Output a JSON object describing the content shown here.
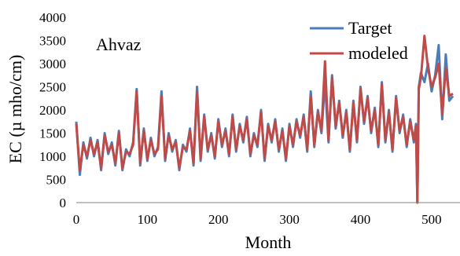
{
  "chart_data": {
    "type": "line",
    "annotation": "Ahvaz",
    "xlabel": "Month",
    "ylabel": "EC (µ mho/cm)",
    "xlim": [
      0,
      540
    ],
    "ylim": [
      0,
      4000
    ],
    "xticks": [
      0,
      100,
      200,
      300,
      400,
      500
    ],
    "yticks": [
      0,
      500,
      1000,
      1500,
      2000,
      2500,
      3000,
      3500,
      4000
    ],
    "grid": false,
    "legend_position": "top-right",
    "series": [
      {
        "name": "Target",
        "color": "#4A7EBB",
        "x": [
          0,
          5,
          10,
          15,
          20,
          25,
          30,
          35,
          40,
          45,
          50,
          55,
          60,
          65,
          70,
          75,
          80,
          85,
          90,
          95,
          100,
          105,
          110,
          115,
          120,
          125,
          130,
          135,
          140,
          145,
          150,
          155,
          160,
          165,
          170,
          175,
          180,
          185,
          190,
          195,
          200,
          205,
          210,
          215,
          220,
          225,
          230,
          235,
          240,
          245,
          250,
          255,
          260,
          265,
          270,
          275,
          280,
          285,
          290,
          295,
          300,
          305,
          310,
          315,
          320,
          325,
          330,
          335,
          340,
          345,
          350,
          355,
          360,
          365,
          370,
          375,
          380,
          385,
          390,
          395,
          400,
          405,
          410,
          415,
          420,
          425,
          430,
          435,
          440,
          445,
          450,
          455,
          460,
          465,
          470,
          475,
          478,
          480,
          482,
          485,
          490,
          495,
          500,
          505,
          510,
          515,
          520,
          525,
          530
        ],
        "y": [
          1750,
          600,
          1300,
          950,
          1400,
          1000,
          1350,
          700,
          1500,
          1050,
          1300,
          800,
          1550,
          700,
          1150,
          1000,
          1300,
          2450,
          800,
          1600,
          900,
          1400,
          1000,
          1200,
          2400,
          900,
          1500,
          1100,
          1350,
          700,
          1250,
          1100,
          1600,
          800,
          2500,
          900,
          1900,
          1100,
          1500,
          950,
          1800,
          1200,
          1600,
          1000,
          1900,
          1100,
          1700,
          1300,
          1850,
          1000,
          1500,
          1200,
          2000,
          900,
          1700,
          1300,
          1800,
          1100,
          1600,
          900,
          1700,
          1200,
          1800,
          1400,
          1900,
          1100,
          2400,
          1200,
          2000,
          1500,
          2600,
          1300,
          2750,
          1600,
          2200,
          1400,
          2000,
          1100,
          2200,
          1300,
          2500,
          1700,
          2300,
          1500,
          2050,
          1200,
          2600,
          1300,
          2000,
          1100,
          2300,
          1500,
          1900,
          1200,
          1800,
          1300,
          1700,
          0,
          2500,
          2800,
          2600,
          3000,
          2400,
          2750,
          3400,
          1800,
          3200,
          2200,
          2300
        ]
      },
      {
        "name": "modeled",
        "color": "#BE4B48",
        "x": [
          0,
          5,
          10,
          15,
          20,
          25,
          30,
          35,
          40,
          45,
          50,
          55,
          60,
          65,
          70,
          75,
          80,
          85,
          90,
          95,
          100,
          105,
          110,
          115,
          120,
          125,
          130,
          135,
          140,
          145,
          150,
          155,
          160,
          165,
          170,
          175,
          180,
          185,
          190,
          195,
          200,
          205,
          210,
          215,
          220,
          225,
          230,
          235,
          240,
          245,
          250,
          255,
          260,
          265,
          270,
          275,
          280,
          285,
          290,
          295,
          300,
          305,
          310,
          315,
          320,
          325,
          330,
          335,
          340,
          345,
          350,
          355,
          360,
          365,
          370,
          375,
          380,
          385,
          390,
          395,
          400,
          405,
          410,
          415,
          420,
          425,
          430,
          435,
          440,
          445,
          450,
          455,
          460,
          465,
          470,
          475,
          478,
          480,
          482,
          485,
          490,
          495,
          500,
          505,
          510,
          515,
          520,
          525,
          530
        ],
        "y": [
          1700,
          700,
          1250,
          1000,
          1350,
          1050,
          1300,
          750,
          1450,
          1100,
          1250,
          850,
          1500,
          750,
          1100,
          1050,
          1250,
          2400,
          850,
          1550,
          950,
          1350,
          1050,
          1150,
          2300,
          950,
          1450,
          1150,
          1300,
          750,
          1200,
          1150,
          1550,
          850,
          2400,
          950,
          1850,
          1150,
          1450,
          1000,
          1750,
          1250,
          1550,
          1050,
          1850,
          1150,
          1650,
          1350,
          1800,
          1050,
          1450,
          1250,
          1950,
          950,
          1650,
          1350,
          1750,
          1150,
          1550,
          950,
          1650,
          1250,
          1750,
          1450,
          1850,
          1150,
          2300,
          1250,
          1950,
          1550,
          3050,
          1350,
          2700,
          1650,
          2150,
          1450,
          1950,
          1150,
          2150,
          1350,
          2450,
          1750,
          2250,
          1550,
          2000,
          1250,
          2550,
          1350,
          1950,
          1150,
          2250,
          1550,
          1850,
          1250,
          1750,
          1350,
          1650,
          0,
          2450,
          2700,
          3600,
          2900,
          2500,
          2700,
          3000,
          1900,
          2900,
          2300,
          2350
        ]
      }
    ]
  }
}
